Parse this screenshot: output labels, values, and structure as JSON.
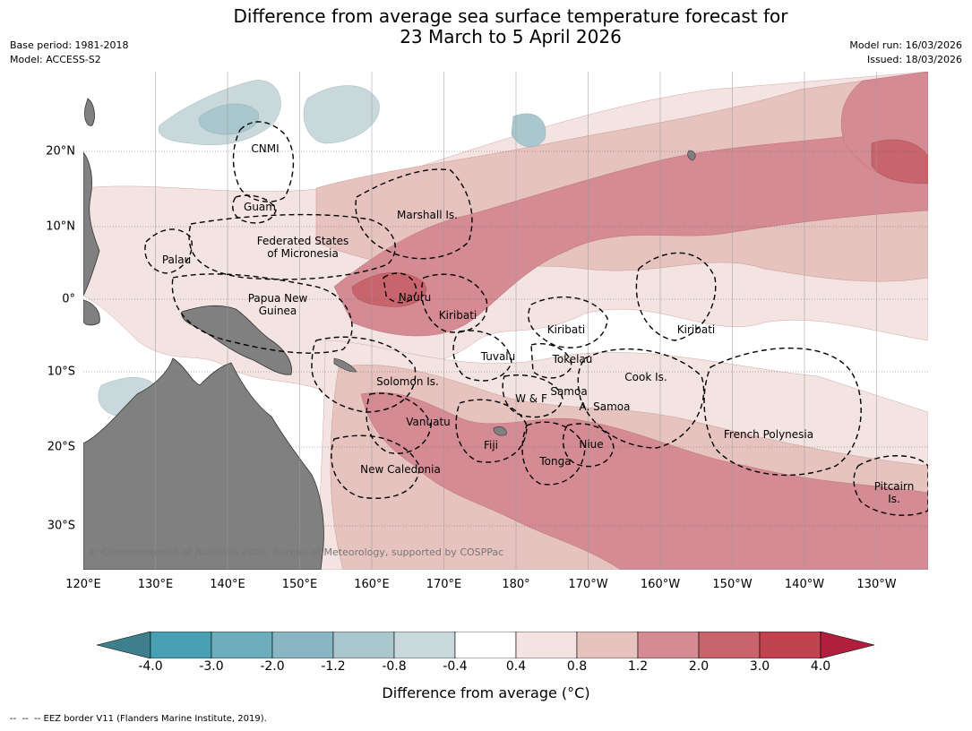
{
  "title_line1": "Difference from average sea surface temperature forecast for",
  "title_line2": "23 March to 5 April 2026",
  "base_period": "Base period: 1981-2018",
  "model": "Model: ACCESS-S2",
  "model_run": "Model run: 16/03/2026",
  "issued": "Issued: 18/03/2026",
  "copyright": "© Commonwealth of Australia 2026, Bureau of Meteorology, supported by COSPPac",
  "lon_labels": [
    "120°E",
    "130°E",
    "140°E",
    "150°E",
    "160°E",
    "170°E",
    "180°",
    "170°W",
    "160°W",
    "150°W",
    "140°W",
    "130°W"
  ],
  "lat_labels": [
    "20°N",
    "10°N",
    "0°",
    "10°S",
    "20°S",
    "30°S"
  ],
  "region_labels": {
    "cnmi": "CNMI",
    "guam": "Guam",
    "marshall": "Marshall Is.",
    "fsm1": "Federated States",
    "fsm2": "of Micronesia",
    "palau": "Palau",
    "png1": "Papua New",
    "png2": "Guinea",
    "nauru": "Nauru",
    "kiribati_w": "Kiribati",
    "kiribati_c": "Kiribati",
    "kiribati_e": "Kiribati",
    "tuvalu": "Tuvalu",
    "tokelau": "Tokelau",
    "cook": "Cook Is.",
    "solomon": "Solomon Is.",
    "wf": "W & F",
    "samoa": "Samoa",
    "asamoa": "A. Samoa",
    "vanuatu": "Vanuatu",
    "fiji": "Fiji",
    "niue": "Niue",
    "tonga": "Tonga",
    "frpoly": "French Polynesia",
    "newcal": "New Caledonia",
    "pitcairn1": "Pitcairn",
    "pitcairn2": "Is."
  },
  "colorbar": {
    "title": "Difference from average (°C)",
    "tick_labels": [
      "-4.0",
      "-3.0",
      "-2.0",
      "-1.2",
      "-0.8",
      "-0.4",
      "0.4",
      "0.8",
      "1.2",
      "2.0",
      "3.0",
      "4.0"
    ],
    "colors": [
      "#3d7f8c",
      "#4aa0b3",
      "#6cadbc",
      "#8ab6c3",
      "#a9c7cd",
      "#c8d8db",
      "#ffffff",
      "#f3e3e1",
      "#e6c3bf",
      "#d58b93",
      "#c8646c",
      "#c0434f",
      "#b01f3c"
    ]
  },
  "colors": {
    "land": "#808080",
    "ocean_neutral": "#ffffff"
  },
  "eez_note": "--  --  -- EEZ border V11 (Flanders Marine Institute, 2019)."
}
